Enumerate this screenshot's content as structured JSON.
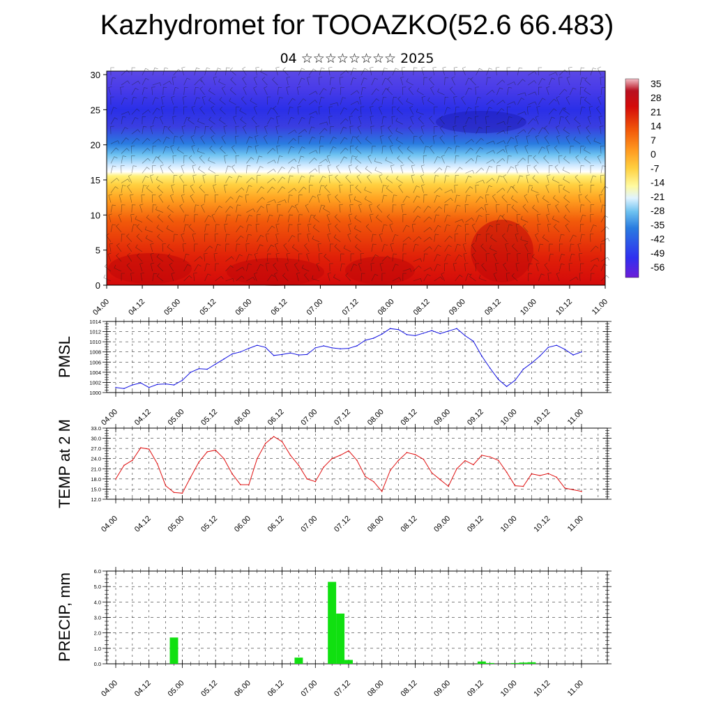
{
  "header": {
    "title": "Kazhydromet for TOOAZKO(52.6 66.483)",
    "subtitle": "04 ☆☆☆☆☆☆☆☆ 2025"
  },
  "chart_data": [
    {
      "type": "heatmap",
      "title": "",
      "xlabel": "",
      "ylabel": "",
      "x_ticks": [
        "04.00",
        "04.12",
        "05.00",
        "05.12",
        "06.00",
        "06.12",
        "07.00",
        "07.12",
        "08.00",
        "08.12",
        "09.00",
        "09.12",
        "10.00",
        "10.12",
        "11.00"
      ],
      "y_ticks": [
        0,
        5,
        10,
        15,
        20,
        25,
        30
      ],
      "ylim": [
        0,
        30.5
      ],
      "colorbar_labels": [
        35,
        28,
        21,
        14,
        7,
        0,
        -7,
        -14,
        -21,
        -28,
        -35,
        -42,
        -49,
        -56
      ],
      "colors": {
        "low": "#6c1dd8",
        "mid": "#ffe066",
        "high": "#d40a0a"
      },
      "overlay": "wind barbs"
    },
    {
      "type": "line",
      "ylabel": "PMSL",
      "ylim": [
        1000,
        1014
      ],
      "y_ticks": [
        "1000",
        "1002",
        "1004",
        "1006",
        "1008",
        "1010",
        "1012",
        "1014"
      ],
      "x_ticks": [
        "04.00",
        "04.12",
        "05.00",
        "05.12",
        "06.00",
        "06.12",
        "07.00",
        "07.12",
        "08.00",
        "08.12",
        "09.00",
        "09.12",
        "10.00",
        "10.12",
        "11.00"
      ],
      "color": "#1010e0",
      "values": [
        1001.0,
        1000.8,
        1001.5,
        1001.9,
        1001.0,
        1001.6,
        1001.7,
        1001.5,
        1002.4,
        1004.0,
        1004.7,
        1004.6,
        1005.6,
        1006.6,
        1007.6,
        1008.0,
        1008.7,
        1009.3,
        1008.9,
        1007.3,
        1007.5,
        1007.8,
        1007.4,
        1007.5,
        1008.8,
        1009.2,
        1008.8,
        1008.6,
        1008.7,
        1009.2,
        1010.3,
        1010.7,
        1011.5,
        1012.6,
        1012.4,
        1011.4,
        1011.2,
        1011.7,
        1012.2,
        1011.6,
        1012.1,
        1012.6,
        1011.2,
        1010.1,
        1007.2,
        1004.8,
        1002.6,
        1001.2,
        1002.4,
        1004.6,
        1005.8,
        1007.2,
        1008.9,
        1009.3,
        1008.5,
        1007.4,
        1008.0
      ]
    },
    {
      "type": "line",
      "ylabel": "TEMP at 2 M",
      "ylim": [
        12,
        33
      ],
      "y_ticks": [
        "12.0",
        "15.0",
        "18.0",
        "21.0",
        "24.0",
        "27.0",
        "30.0",
        "33.0"
      ],
      "x_ticks": [
        "04.00",
        "04.12",
        "05.00",
        "05.12",
        "06.00",
        "06.12",
        "07.00",
        "07.12",
        "08.00",
        "08.12",
        "09.00",
        "09.12",
        "10.00",
        "10.12",
        "11.00"
      ],
      "color": "#e01010",
      "values": [
        18.0,
        22.0,
        23.5,
        27.2,
        26.8,
        22.5,
        16.0,
        14.0,
        13.8,
        18.5,
        23.0,
        26.0,
        26.5,
        24.0,
        19.5,
        16.3,
        16.3,
        24.0,
        28.5,
        30.5,
        29.0,
        25.0,
        22.0,
        18.0,
        17.2,
        21.5,
        24.0,
        25.0,
        26.3,
        23.5,
        18.7,
        17.2,
        14.3,
        20.5,
        23.5,
        25.8,
        25.2,
        23.8,
        19.8,
        17.8,
        15.8,
        21.0,
        23.4,
        22.2,
        25.0,
        24.5,
        23.5,
        20.0,
        16.0,
        15.8,
        19.5,
        19.0,
        19.6,
        18.5,
        15.3,
        14.8,
        14.3
      ]
    },
    {
      "type": "bar",
      "ylabel": "PRECIP, mm",
      "ylim": [
        0,
        6
      ],
      "y_ticks": [
        "0.0",
        "1.0",
        "2.0",
        "3.0",
        "4.0",
        "5.0",
        "6.0"
      ],
      "x_ticks": [
        "04.00",
        "04.12",
        "05.00",
        "05.12",
        "06.00",
        "06.12",
        "07.00",
        "07.12",
        "08.00",
        "08.12",
        "09.00",
        "09.12",
        "10.00",
        "10.12",
        "11.00"
      ],
      "color": "#10e010",
      "values": [
        0,
        0,
        0,
        0,
        0,
        0,
        0,
        1.7,
        0,
        0,
        0,
        0,
        0,
        0,
        0,
        0,
        0,
        0,
        0,
        0,
        0,
        0,
        0.4,
        0,
        0,
        0,
        5.3,
        3.25,
        0.25,
        0,
        0,
        0,
        0,
        0,
        0,
        0,
        0,
        0,
        0,
        0,
        0,
        0,
        0,
        0,
        0.15,
        0.05,
        0,
        0,
        0.05,
        0.08,
        0.1,
        0,
        0,
        0,
        0,
        0,
        0
      ]
    }
  ]
}
